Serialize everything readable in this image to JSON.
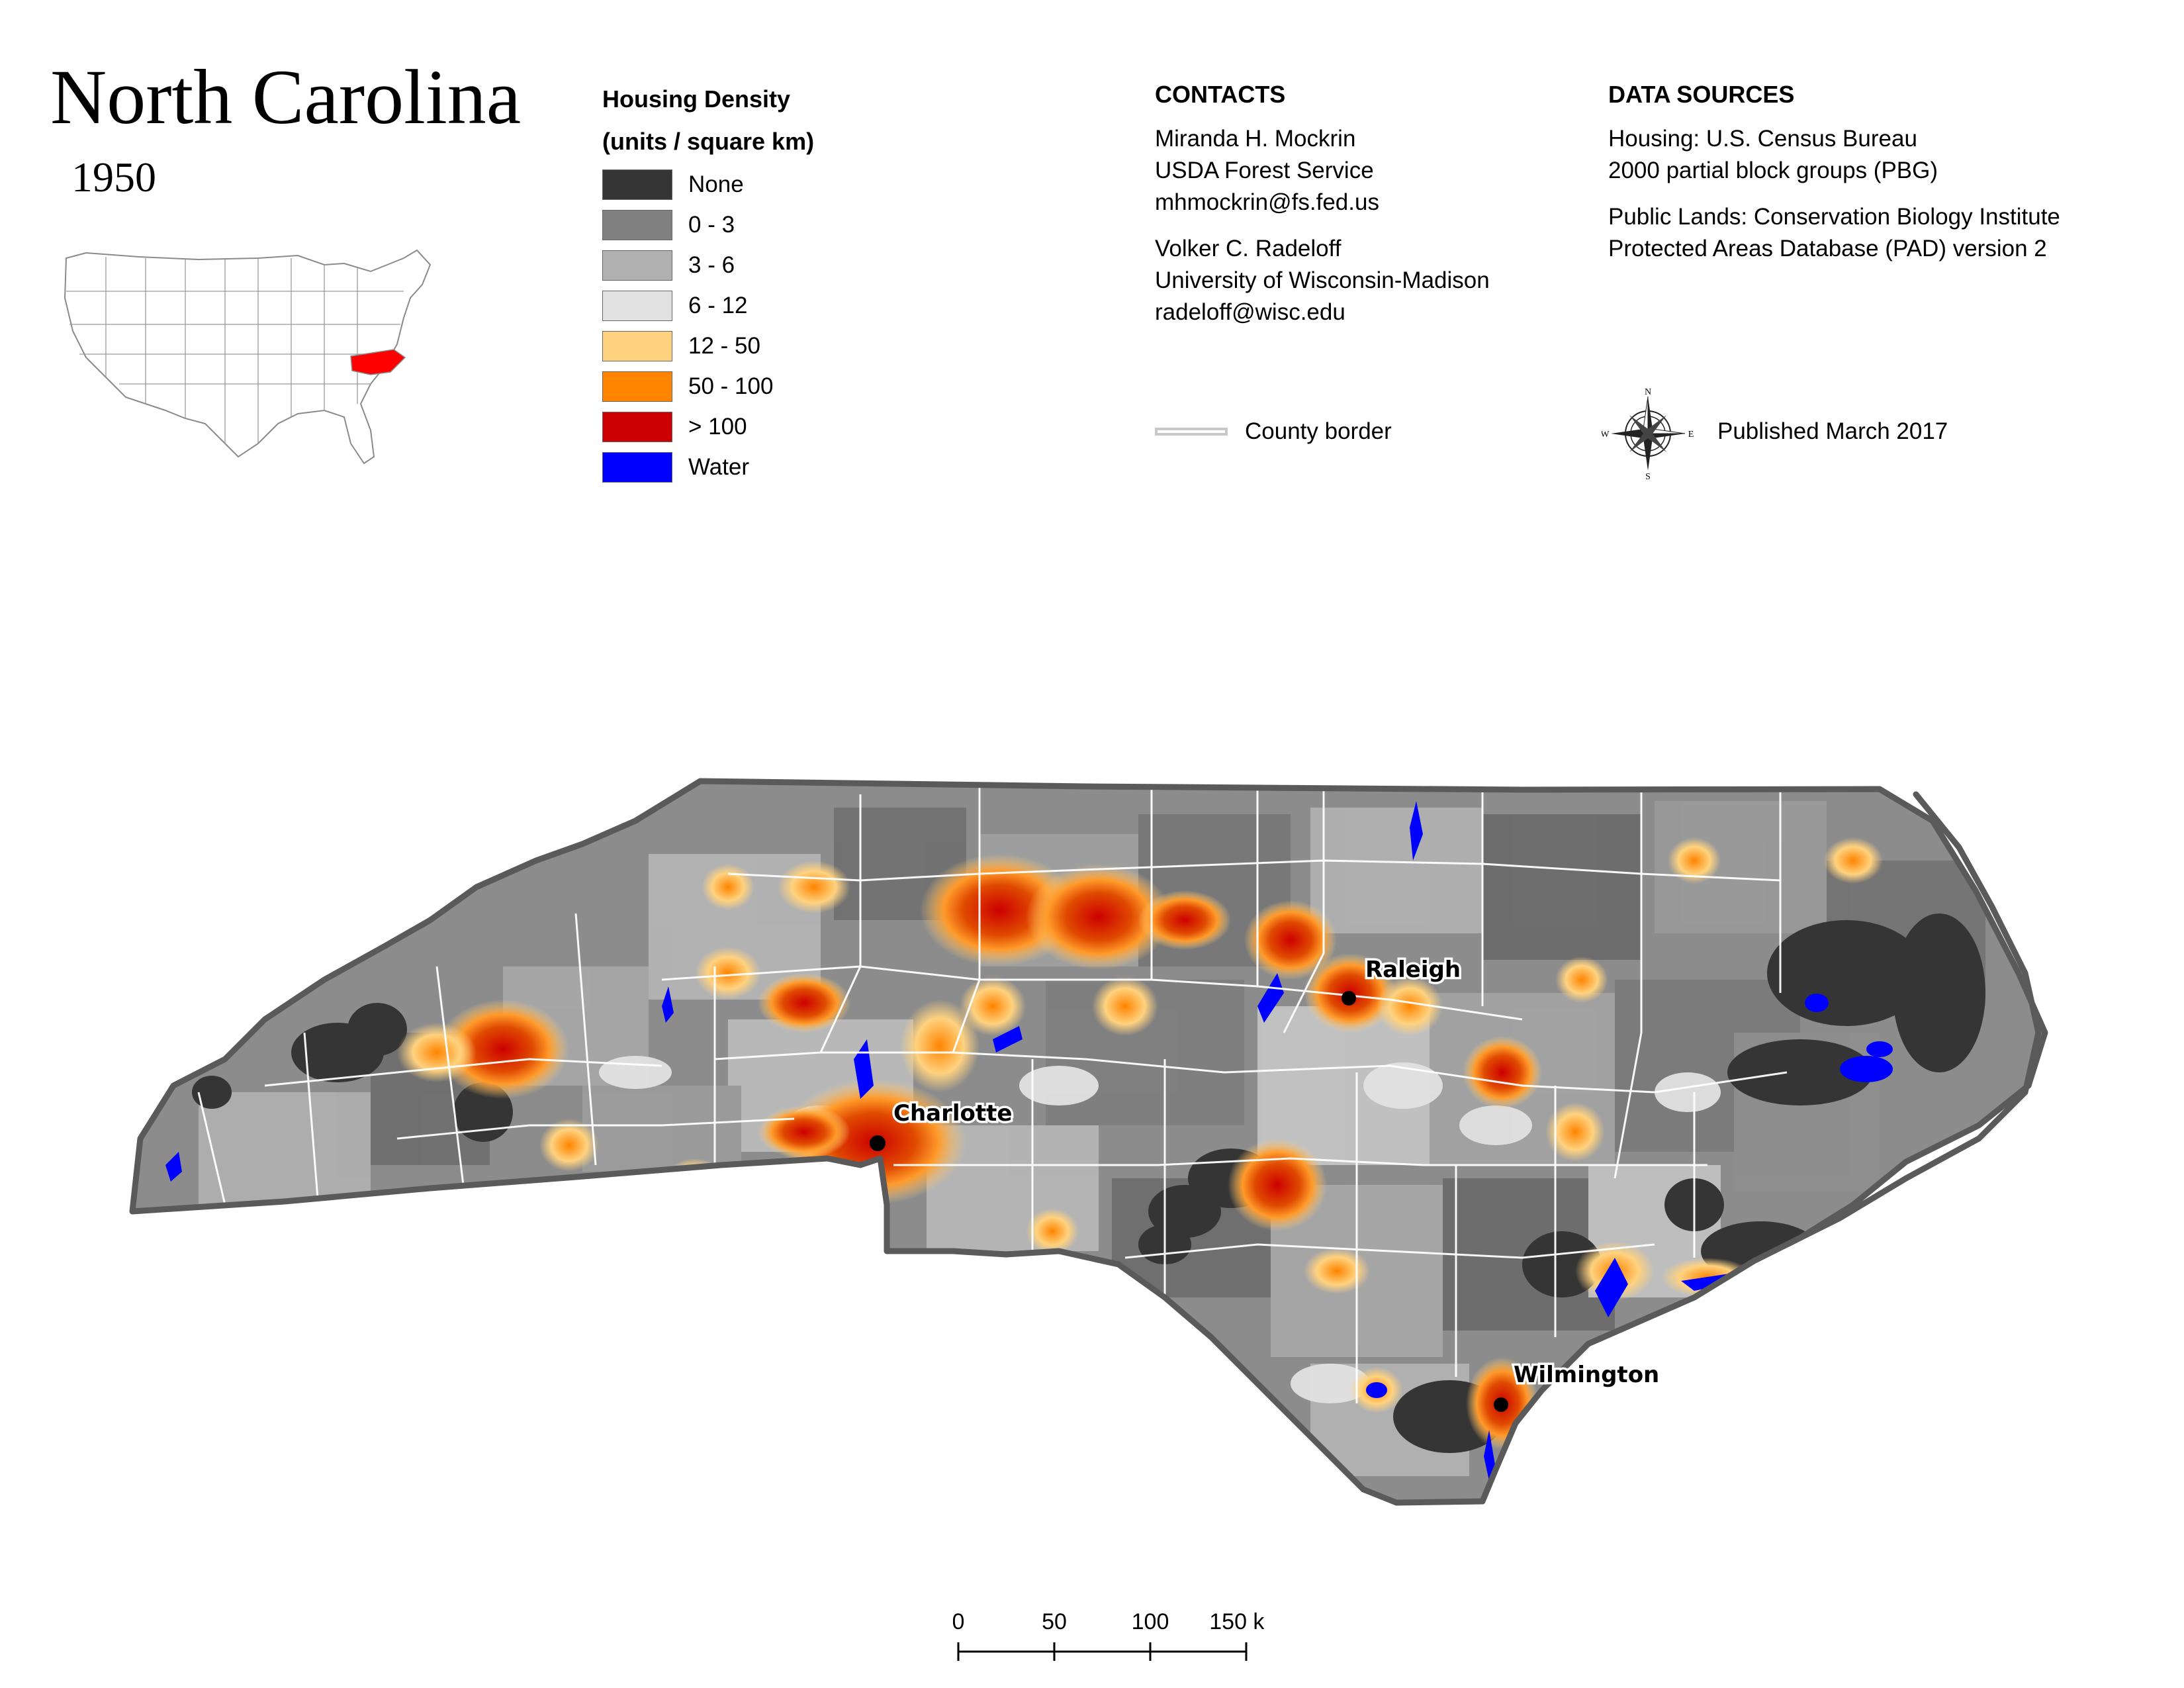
{
  "title": "North Carolina",
  "year": "1950",
  "legend": {
    "heading_line1": "Housing Density",
    "heading_line2": "(units / square km)",
    "items": [
      {
        "label": "None",
        "color": "#353535"
      },
      {
        "label": "0 - 3",
        "color": "#808080"
      },
      {
        "label": "3 - 6",
        "color": "#b0b0b0"
      },
      {
        "label": "6 - 12",
        "color": "#e1e1e1"
      },
      {
        "label": "12 - 50",
        "color": "#ffd27f"
      },
      {
        "label": "50 - 100",
        "color": "#ff8400"
      },
      {
        "label": "> 100",
        "color": "#cc0000"
      },
      {
        "label": "Water",
        "color": "#0000ff"
      }
    ]
  },
  "contacts": {
    "heading": "CONTACTS",
    "person1": {
      "name": "Miranda H. Mockrin",
      "org": "USDA Forest Service",
      "email": "mhmockrin@fs.fed.us"
    },
    "person2": {
      "name": "Volker C. Radeloff",
      "org": "University of Wisconsin-Madison",
      "email": "radeloff@wisc.edu"
    }
  },
  "data_sources": {
    "heading": "DATA SOURCES",
    "housing_line1": "Housing: U.S. Census Bureau",
    "housing_line2": "2000 partial block groups (PBG)",
    "lands_line1": "Public Lands: Conservation Biology Institute",
    "lands_line2": "Protected Areas Database (PAD) version 2"
  },
  "county_border_label": "County border",
  "compass": {
    "n": "N",
    "s": "S",
    "e": "E",
    "w": "W"
  },
  "published": "Published March 2017",
  "cities": [
    {
      "name": "Raleigh"
    },
    {
      "name": "Charlotte"
    },
    {
      "name": "Wilmington"
    }
  ],
  "scale_bar": {
    "labels": [
      "0",
      "50",
      "100",
      "150 km"
    ]
  },
  "colors": {
    "state_outline": "#5a5a5a",
    "inset_highlight": "#ff0000",
    "county_lines": "#ffffff"
  }
}
